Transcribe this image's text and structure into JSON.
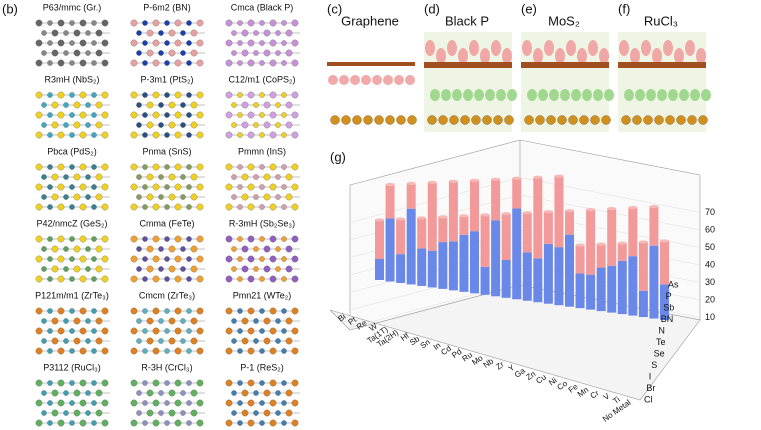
{
  "panels": {
    "b": {
      "letter": "(b)",
      "labels": [
        "P63/mmc (Gr.)",
        "P-6m2 (BN)",
        "Cmca (Black P)",
        "R3mH (NbS₂)",
        "P-3m1 (PtS₂)",
        "C12/m1 (CoPS₂)",
        "Pbca (PdS₂)",
        "Pnma (SnS)",
        "Pmmn (InS)",
        "P42/nmcZ (GeS₂)",
        "Cmma (FeTe)",
        "R-3mH (Sb₂Se₃)",
        "P121m/m1 (ZrTe₃)",
        "Cmcm (ZrTe₃)",
        "Pmn21 (WTe₂)",
        "P3112 (RuCl₃)",
        "R-3H (CrCl₃)",
        "P-1 (ReS₂)"
      ]
    },
    "cf": [
      {
        "letter": "(c)",
        "title": "Graphene"
      },
      {
        "letter": "(d)",
        "title": "Black P"
      },
      {
        "letter": "(e)",
        "title": "MoS₂"
      },
      {
        "letter": "(f)",
        "title": "RuCl₃"
      }
    ],
    "g": {
      "letter": "(g)",
      "zticks": [
        10,
        20,
        30,
        40,
        50,
        60,
        70
      ],
      "metals": [
        "Bi",
        "Pt",
        "Re",
        "W",
        "Ta(1T)",
        "Ta(2H)",
        "Hf",
        "Sb",
        "Sn",
        "In",
        "Cd",
        "Pd",
        "Ru",
        "Mo",
        "Nb",
        "Zr",
        "Y",
        "Ga",
        "Zn",
        "Cu",
        "Ni",
        "Co",
        "Fe",
        "Mn",
        "Cr",
        "V",
        "Ti",
        "No Metal"
      ],
      "substrates": [
        "As",
        "P",
        "Sb",
        "BN",
        "N",
        "Te",
        "Se",
        "S",
        "I",
        "Br",
        "Cl"
      ]
    }
  }
}
